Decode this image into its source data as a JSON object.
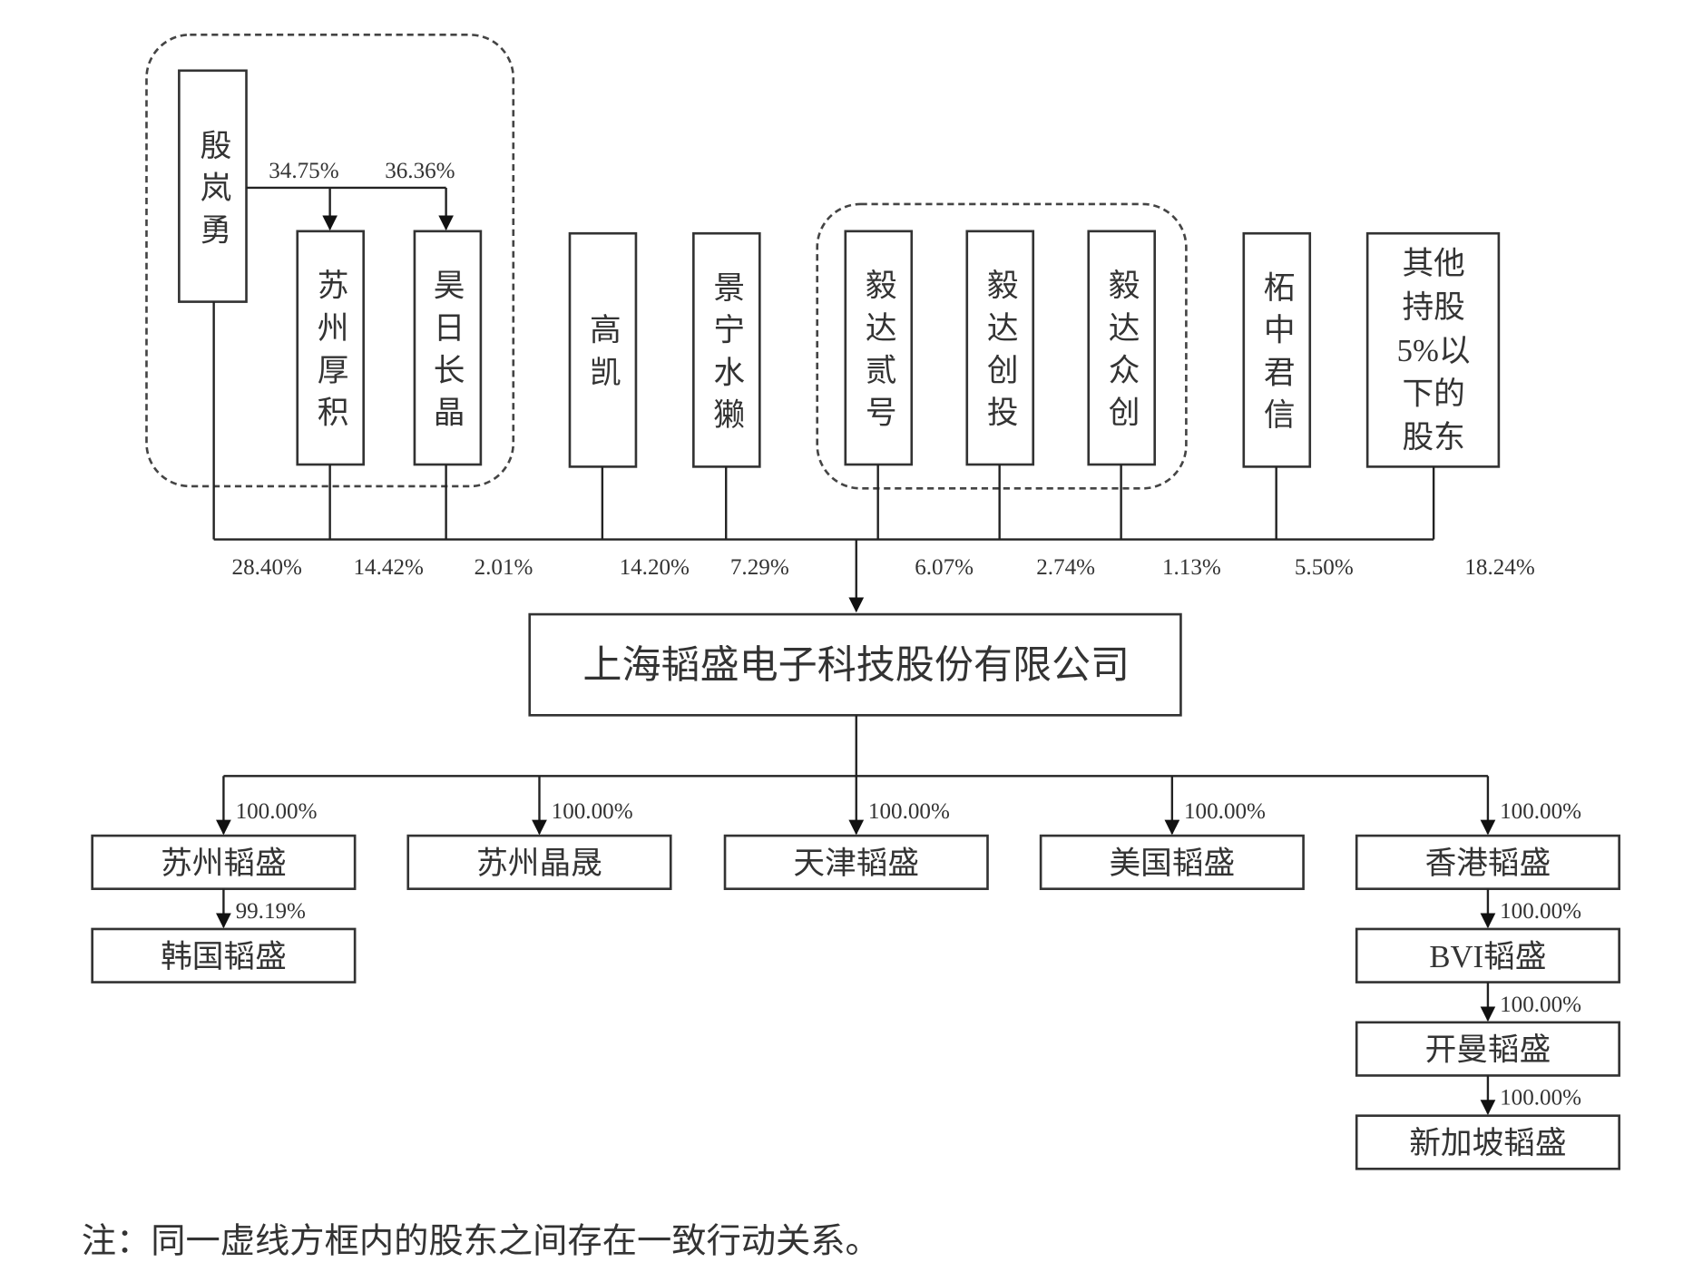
{
  "holding": {
    "founder": {
      "lines": [
        "殷",
        "岚",
        "勇"
      ],
      "name": "殷岚勇"
    },
    "founder_stakes": [
      {
        "target": "苏州厚积",
        "pct": "34.75%"
      },
      {
        "target": "昊日长晶",
        "pct": "36.36%"
      }
    ]
  },
  "shareholders": [
    {
      "name": "殷岚勇",
      "pct": "28.40%"
    },
    {
      "name": "苏州厚积",
      "lines": [
        "苏",
        "州",
        "厚",
        "积"
      ],
      "pct": "14.42%"
    },
    {
      "name": "昊日长晶",
      "lines": [
        "昊",
        "日",
        "长",
        "晶"
      ],
      "pct": "2.01%"
    },
    {
      "name": "高凯",
      "lines": [
        "高",
        "凯"
      ],
      "pct": "14.20%"
    },
    {
      "name": "景宁水獭",
      "lines": [
        "景",
        "宁",
        "水",
        "獭"
      ],
      "pct": "7.29%"
    },
    {
      "name": "毅达贰号",
      "lines": [
        "毅",
        "达",
        "贰",
        "号"
      ],
      "pct": "6.07%"
    },
    {
      "name": "毅达创投",
      "lines": [
        "毅",
        "达",
        "创",
        "投"
      ],
      "pct": "2.74%"
    },
    {
      "name": "毅达众创",
      "lines": [
        "毅",
        "达",
        "众",
        "创"
      ],
      "pct": "1.13%"
    },
    {
      "name": "柘中君信",
      "lines": [
        "柘",
        "中",
        "君",
        "信"
      ],
      "pct": "5.50%"
    },
    {
      "name": "其他持股5%以下的股东",
      "lines": [
        "其他",
        "持股",
        "5%以",
        "下的",
        "股东"
      ],
      "pct": "18.24%"
    }
  ],
  "company": "上海韬盛电子科技股份有限公司",
  "subsidiaries": [
    {
      "name": "苏州韬盛",
      "pct": "100.00%",
      "children": [
        {
          "name": "韩国韬盛",
          "pct": "99.19%"
        }
      ]
    },
    {
      "name": "苏州晶晟",
      "pct": "100.00%",
      "children": []
    },
    {
      "name": "天津韬盛",
      "pct": "100.00%",
      "children": []
    },
    {
      "name": "美国韬盛",
      "pct": "100.00%",
      "children": []
    },
    {
      "name": "香港韬盛",
      "pct": "100.00%",
      "children": [
        {
          "name": "BVI韬盛",
          "pct": "100.00%"
        },
        {
          "name": "开曼韬盛",
          "pct": "100.00%"
        },
        {
          "name": "新加坡韬盛",
          "pct": "100.00%"
        }
      ]
    }
  ],
  "note": "注：同一虚线方框内的股东之间存在一致行动关系。"
}
